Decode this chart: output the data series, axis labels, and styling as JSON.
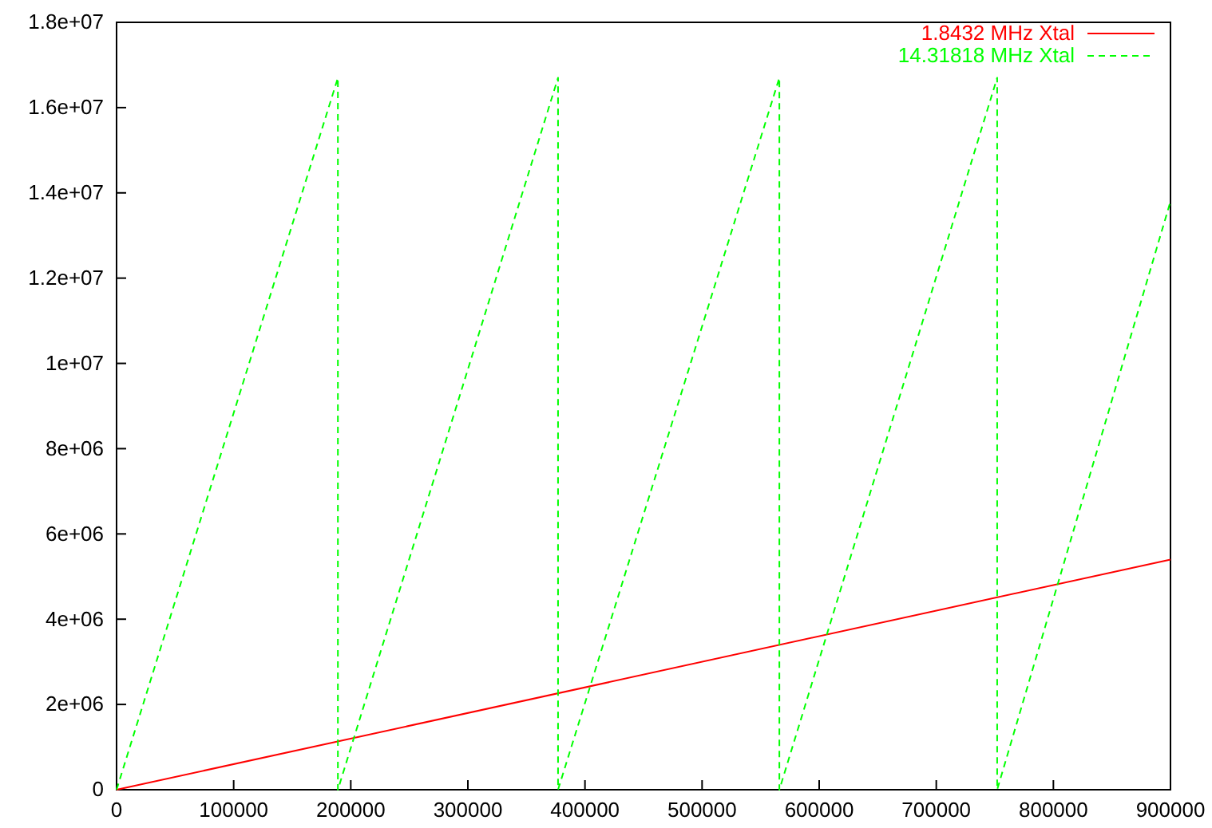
{
  "chart_data": {
    "type": "line",
    "xlim": [
      0,
      900000
    ],
    "xticks": [
      0,
      100000,
      200000,
      300000,
      400000,
      500000,
      600000,
      700000,
      800000,
      900000
    ],
    "ylim": [
      0,
      18000000
    ],
    "yticks": [
      0,
      {
        "value": 2000000,
        "label": "2e+06"
      },
      {
        "value": 4000000,
        "label": "4e+06"
      },
      {
        "value": 6000000,
        "label": "6e+06"
      },
      {
        "value": 8000000,
        "label": "8e+06"
      },
      {
        "value": 10000000,
        "label": "1e+07"
      },
      {
        "value": 12000000,
        "label": "1.2e+07"
      },
      {
        "value": 14000000,
        "label": "1.4e+07"
      },
      {
        "value": 16000000,
        "label": "1.6e+07"
      },
      {
        "value": 18000000,
        "label": "1.8e+07"
      }
    ],
    "legend": "top right",
    "series": [
      {
        "name": "1.8432 MHz Xtal",
        "color": "#ff0000",
        "line_style": "solid",
        "x": [
          0,
          900000
        ],
        "values": [
          0,
          5400000
        ]
      },
      {
        "name": "14.31818 MHz Xtal",
        "color": "#00ff00",
        "line_style": "dashed",
        "x": [
          0,
          189000,
          189000,
          377000,
          377000,
          566000,
          566000,
          752000,
          752000,
          900000
        ],
        "values": [
          0,
          16700000,
          0,
          16700000,
          0,
          16700000,
          0,
          16700000,
          0,
          13800000
        ]
      }
    ]
  }
}
